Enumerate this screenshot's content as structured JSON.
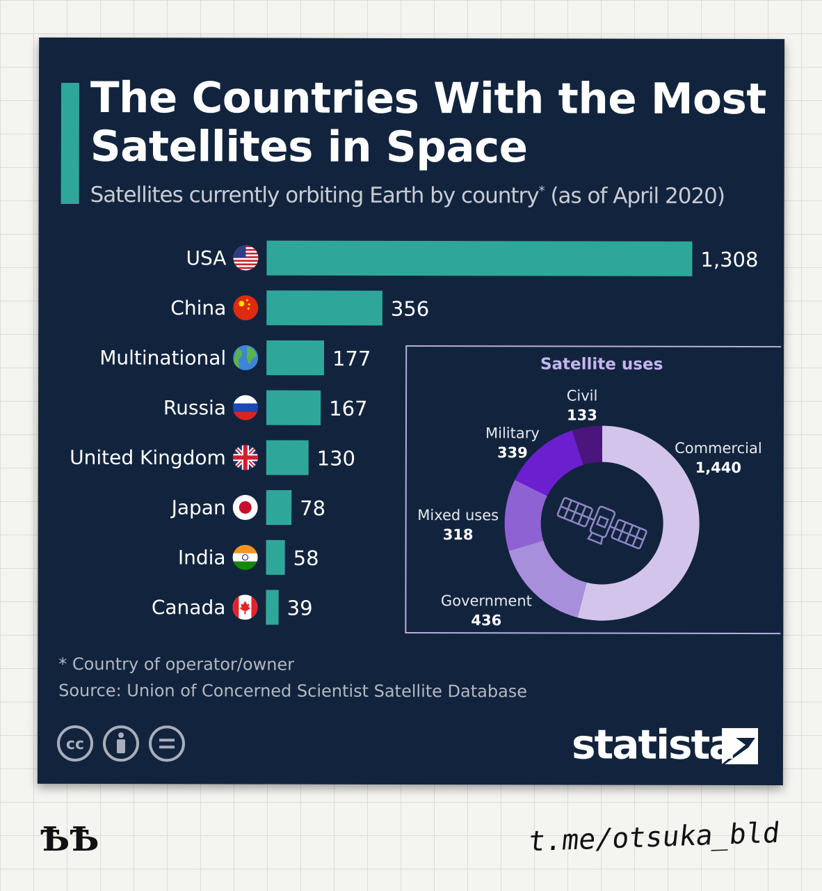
{
  "title": "The Countries With the Most Satellites in Space",
  "subtitle_main": "Satellites currently orbiting Earth by country",
  "subtitle_star": "*",
  "subtitle_date": " (as of April 2020)",
  "footnote": "* Country of operator/owner",
  "source": "Source: Union of Concerned Scientist Satellite Database",
  "brand": "statista",
  "watermark_left": "ѢѢ",
  "watermark_right": "t.me/otsuka_bld",
  "colors": {
    "background": "#12243d",
    "bar": "#2ea79a",
    "accent": "#2ea79a",
    "text": "#ffffff",
    "donut": [
      "#d3c4ec",
      "#a88fdc",
      "#8f62d4",
      "#6b1fcf",
      "#4a157c"
    ]
  },
  "chart_data": [
    {
      "type": "bar",
      "orientation": "horizontal",
      "categories": [
        "USA",
        "China",
        "Multinational",
        "Russia",
        "United Kingdom",
        "Japan",
        "India",
        "Canada"
      ],
      "values": [
        1308,
        356,
        177,
        167,
        130,
        78,
        58,
        39
      ],
      "value_labels": [
        "1,308",
        "356",
        "177",
        "167",
        "130",
        "78",
        "58",
        "39"
      ],
      "flag_icons": [
        "usa-flag-icon",
        "china-flag-icon",
        "globe-icon",
        "russia-flag-icon",
        "uk-flag-icon",
        "japan-flag-icon",
        "india-flag-icon",
        "canada-flag-icon"
      ],
      "xlim": [
        0,
        1308
      ]
    },
    {
      "type": "pie",
      "title": "Satellite uses",
      "labels": [
        "Commercial",
        "Government",
        "Mixed uses",
        "Military",
        "Civil"
      ],
      "values": [
        1440,
        436,
        318,
        339,
        133
      ],
      "value_labels": [
        "1,440",
        "436",
        "318",
        "339",
        "133"
      ],
      "donut": true,
      "center_icon": "satellite-icon"
    }
  ]
}
